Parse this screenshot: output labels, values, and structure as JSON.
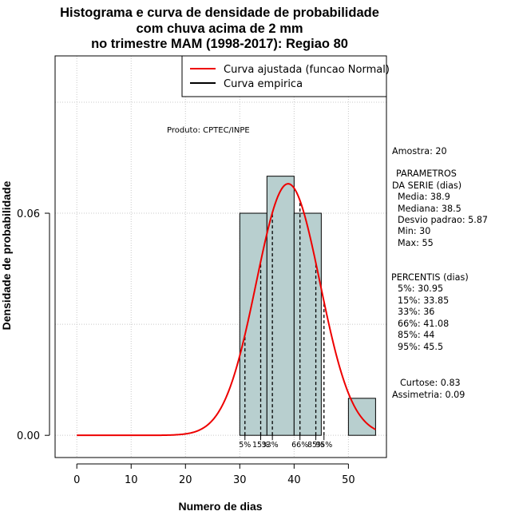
{
  "chart_data": {
    "type": "bar",
    "title_lines": [
      "Histograma e curva de densidade de probabilidade",
      "com chuva acima de 2 mm",
      "no trimestre MAM (1998-2017): Regiao 80"
    ],
    "xlabel": "Numero de dias",
    "ylabel": "Densidade de probabilidade",
    "xlim": [
      -4,
      57
    ],
    "ylim": [
      -0.006,
      0.1025
    ],
    "x_ticks": [
      0,
      10,
      20,
      30,
      40,
      50
    ],
    "y_ticks": [
      0.0,
      0.06
    ],
    "y_tick_labels": [
      "0.00",
      "0.06"
    ],
    "grid": true,
    "bins": [
      {
        "start": 30,
        "end": 35,
        "density": 0.06
      },
      {
        "start": 35,
        "end": 40,
        "density": 0.07
      },
      {
        "start": 40,
        "end": 45,
        "density": 0.06
      },
      {
        "start": 45,
        "end": 50,
        "density": 0.0
      },
      {
        "start": 50,
        "end": 55,
        "density": 0.01
      }
    ],
    "bar_color": "#b8cfcf",
    "curve": {
      "name": "Curva ajustada (funcao Normal)",
      "distribution": "normal",
      "mean": 38.9,
      "sd": 5.87,
      "x_range": [
        0,
        55
      ],
      "color": "#ee0000"
    },
    "empirical": {
      "name": "Curva empirica",
      "color": "#000000"
    },
    "legend_position": "top-right",
    "percentiles": [
      {
        "label": "5%",
        "value": 30.95
      },
      {
        "label": "15%",
        "value": 33.85
      },
      {
        "label": "33%",
        "value": 36
      },
      {
        "label": "66%",
        "value": 41.08
      },
      {
        "label": "85%",
        "value": 44
      },
      {
        "label": "95%",
        "value": 45.5
      }
    ],
    "product_label": "Produto: CPTEC/INPE"
  },
  "side_panel": {
    "sample": "Amostra: 20",
    "params_header_1": "PARAMETROS",
    "params_header_2": "DA SERIE (dias)",
    "media": "Media: 38.9",
    "mediana": "Mediana: 38.5",
    "desvio": "Desvio padrao: 5.87",
    "min": "Min: 30",
    "max": "Max: 55",
    "percentis_header": "PERCENTIS (dias)",
    "p5": "5%: 30.95",
    "p15": "15%: 33.85",
    "p33": "33%: 36",
    "p66": "66%: 41.08",
    "p85": "85%: 44",
    "p95": "95%: 45.5",
    "curtose": "Curtose: 0.83",
    "assimetria": "Assimetria: 0.09"
  }
}
